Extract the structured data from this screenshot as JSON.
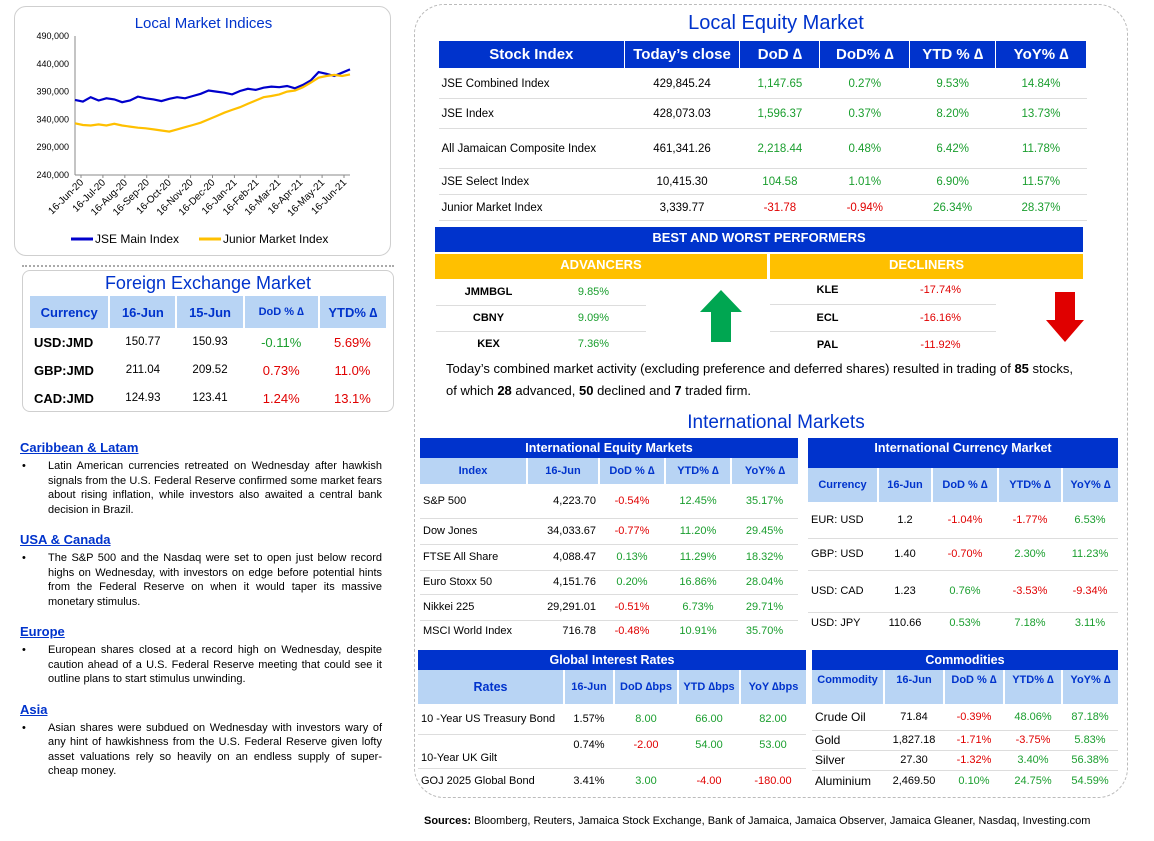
{
  "chart_data": {
    "type": "line",
    "title": "Local Market Indices",
    "y_ticks": [
      "490,000",
      "440,000",
      "390,000",
      "340,000",
      "290,000",
      "240,000"
    ],
    "ylim": [
      240000,
      490000
    ],
    "x_ticks": [
      "16-Jun-20",
      "16-Jul-20",
      "16-Aug-20",
      "16-Sep-20",
      "16-Oct-20",
      "16-Nov-20",
      "16-Dec-20",
      "16-Jan-21",
      "16-Feb-21",
      "16-Mar-21",
      "16-Apr-21",
      "16-May-21",
      "16-Jun-21"
    ],
    "series": [
      {
        "name": "JSE Main Index",
        "color": "#0000cc",
        "values": [
          375000,
          372000,
          380000,
          374000,
          378000,
          376000,
          371000,
          374000,
          381000,
          378000,
          376000,
          373000,
          377000,
          380000,
          378000,
          382000,
          386000,
          392000,
          390000,
          388000,
          385000,
          391000,
          395000,
          393000,
          397000,
          399000,
          398000,
          400000,
          396000,
          402000,
          410000,
          425000,
          422000,
          418000,
          424000,
          429845
        ]
      },
      {
        "name": "Junior Market Index",
        "color": "#ffc000",
        "values": [
          333000,
          330000,
          329000,
          331000,
          329000,
          332000,
          329000,
          327000,
          325000,
          324000,
          322000,
          320000,
          318000,
          322000,
          326000,
          330000,
          334000,
          340000,
          346000,
          352000,
          357000,
          362000,
          368000,
          374000,
          380000,
          382000,
          385000,
          390000,
          392000,
          398000,
          406000,
          415000,
          418000,
          420000,
          418000,
          421000
        ]
      }
    ]
  },
  "fx": {
    "title": "Foreign Exchange Market",
    "headers": [
      "Currency",
      "16-Jun",
      "15-Jun",
      "DoD % ∆",
      "YTD% ∆"
    ],
    "rows": [
      [
        "USD:JMD",
        "150.77",
        "150.93",
        "-0.11%",
        "5.69%"
      ],
      [
        "GBP:JMD",
        "211.04",
        "209.52",
        "0.73%",
        "11.0%"
      ],
      [
        "CAD:JMD",
        "124.93",
        "123.41",
        "1.24%",
        "13.1%"
      ]
    ]
  },
  "news": [
    {
      "heading": "Caribbean & Latam",
      "text": "Latin American currencies retreated on Wednesday after hawkish signals from the U.S. Federal Reserve confirmed some market fears about rising inflation, while investors also awaited a central bank decision in Brazil."
    },
    {
      "heading": "USA & Canada",
      "text": "The S&P 500 and the Nasdaq were set to open just below record highs on Wednesday, with investors on edge before potential hints from the Federal Reserve on when it would taper its massive monetary stimulus."
    },
    {
      "heading": "Europe",
      "text": "European shares closed at a record high on Wednesday, despite caution ahead of a U.S. Federal Reserve meeting that could see it outline plans to start stimulus unwinding."
    },
    {
      "heading": "Asia",
      "text": "Asian shares were subdued on Wednesday with investors wary of any hint of hawkishness from the U.S. Federal Reserve given lofty asset valuations rely so heavily on an endless supply of super-cheap money."
    }
  ],
  "equity": {
    "title": "Local Equity Market",
    "headers": [
      "Stock Index",
      "Today’s close",
      "DoD  ∆",
      "DoD% ∆",
      "YTD % ∆",
      "YoY% ∆"
    ],
    "rows": [
      [
        "JSE Combined Index",
        "429,845.24",
        "1,147.65",
        "0.27%",
        "9.53%",
        "14.84%"
      ],
      [
        "JSE Index",
        "428,073.03",
        "1,596.37",
        "0.37%",
        "8.20%",
        "13.73%"
      ],
      [
        "All Jamaican Composite Index",
        "461,341.26",
        "2,218.44",
        "0.48%",
        "6.42%",
        "11.78%"
      ],
      [
        "JSE Select Index",
        "10,415.30",
        "104.58",
        "1.01%",
        "6.90%",
        "11.57%"
      ],
      [
        "Junior Market Index",
        "3,339.77",
        "-31.78",
        "-0.94%",
        "26.34%",
        "28.37%"
      ]
    ]
  },
  "performers": {
    "title": "BEST AND WORST PERFORMERS",
    "adv_label": "ADVANCERS",
    "dec_label": "DECLINERS",
    "advancers": [
      [
        "JMMBGL",
        "9.85%"
      ],
      [
        "CBNY",
        "9.09%"
      ],
      [
        "KEX",
        "7.36%"
      ]
    ],
    "decliners": [
      [
        "KLE",
        "-17.74%"
      ],
      [
        "ECL",
        "-16.16%"
      ],
      [
        "PAL",
        "-11.92%"
      ]
    ]
  },
  "activity": {
    "pre": "Today’s combined market activity (excluding preference and deferred shares) resulted in trading of ",
    "total": "85",
    "mid1": " stocks, of which ",
    "adv": "28",
    "mid2": " advanced, ",
    "dec": "50",
    "mid3": " declined and ",
    "firm": "7",
    "post": " traded firm."
  },
  "intl_title": "International Markets",
  "intl_equity": {
    "title": "International Equity Markets",
    "headers": [
      "Index",
      "16-Jun",
      "DoD % ∆",
      "YTD% ∆",
      "YoY% ∆"
    ],
    "rows": [
      [
        "S&P 500",
        "4,223.70",
        "-0.54%",
        "12.45%",
        "35.17%"
      ],
      [
        "Dow Jones",
        "34,033.67",
        "-0.77%",
        "11.20%",
        "29.45%"
      ],
      [
        "FTSE All Share",
        "4,088.47",
        "0.13%",
        "11.29%",
        "18.32%"
      ],
      [
        "Euro Stoxx 50",
        "4,151.76",
        "0.20%",
        "16.86%",
        "28.04%"
      ],
      [
        "Nikkei 225",
        "29,291.01",
        "-0.51%",
        "6.73%",
        "29.71%"
      ],
      [
        "MSCI World Index",
        "716.78",
        "-0.48%",
        "10.91%",
        "35.70%"
      ]
    ]
  },
  "intl_currency": {
    "title": "International Currency Market",
    "headers": [
      "Currency",
      "16-Jun",
      "DoD % ∆",
      "YTD% ∆",
      "YoY% ∆"
    ],
    "rows": [
      [
        "EUR: USD",
        "1.2",
        "-1.04%",
        "-1.77%",
        "6.53%"
      ],
      [
        "GBP: USD",
        "1.40",
        "-0.70%",
        "2.30%",
        "11.23%"
      ],
      [
        "USD: CAD",
        "1.23",
        "0.76%",
        "-3.53%",
        "-9.34%"
      ],
      [
        "USD: JPY",
        "110.66",
        "0.53%",
        "7.18%",
        "3.11%"
      ]
    ]
  },
  "rates": {
    "title": "Global Interest Rates",
    "headers": [
      "Rates",
      "16-Jun",
      "DoD ∆bps",
      "YTD ∆bps",
      "YoY ∆bps"
    ],
    "rows": [
      [
        "10 -Year US Treasury Bond",
        "1.57%",
        "8.00",
        "66.00",
        "82.00"
      ],
      [
        "10-Year UK Gilt",
        "0.74%",
        "-2.00",
        "54.00",
        "53.00"
      ],
      [
        "GOJ 2025 Global Bond",
        "3.41%",
        "3.00",
        "-4.00",
        "-180.00"
      ]
    ]
  },
  "commodities": {
    "title": "Commodities",
    "headers": [
      "Commodity",
      "16-Jun",
      "DoD % ∆",
      "YTD% ∆",
      "YoY% ∆"
    ],
    "rows": [
      [
        "Crude Oil",
        "71.84",
        "-0.39%",
        "48.06%",
        "87.18%"
      ],
      [
        "Gold",
        "1,827.18",
        "-1.71%",
        "-3.75%",
        "5.83%"
      ],
      [
        "Silver",
        "27.30",
        "-1.32%",
        "3.40%",
        "56.38%"
      ],
      [
        "Aluminium",
        "2,469.50",
        "0.10%",
        "24.75%",
        "54.59%"
      ]
    ]
  },
  "sources": {
    "label": "Sources:",
    "text": " Bloomberg, Reuters, Jamaica Stock Exchange, Bank of Jamaica, Jamaica Observer, Jamaica Gleaner, Nasdaq, Investing.com"
  }
}
